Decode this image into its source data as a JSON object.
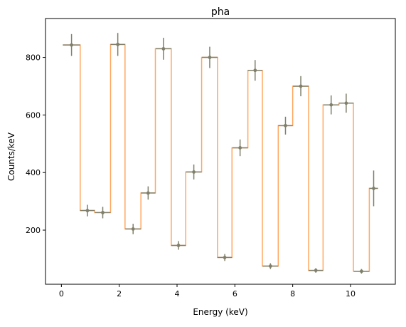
{
  "chart_data": {
    "type": "line",
    "title": "pha",
    "xlabel": "Energy (keV)",
    "ylabel": "Counts/keV",
    "xlim": [
      -0.55,
      11.55
    ],
    "ylim": [
      12,
      935
    ],
    "x_ticks": [
      0,
      2,
      4,
      6,
      8,
      10
    ],
    "x_tick_labels": [
      "0",
      "2",
      "4",
      "6",
      "8",
      "10"
    ],
    "y_ticks": [
      200,
      400,
      600,
      800
    ],
    "y_tick_labels": [
      "200",
      "400",
      "600",
      "800"
    ],
    "grid": false,
    "legend": "none",
    "colors": {
      "step": "#ffa75f",
      "points": "#7f7f6b",
      "frame": "#000000"
    },
    "series": [
      {
        "style": "step",
        "bins": [
          {
            "lo": 0.05,
            "hi": 0.65,
            "y": 843
          },
          {
            "lo": 0.65,
            "hi": 1.15,
            "y": 268
          },
          {
            "lo": 1.15,
            "hi": 1.7,
            "y": 261
          },
          {
            "lo": 1.7,
            "hi": 2.2,
            "y": 845
          },
          {
            "lo": 2.2,
            "hi": 2.75,
            "y": 204
          },
          {
            "lo": 2.75,
            "hi": 3.25,
            "y": 329
          },
          {
            "lo": 3.25,
            "hi": 3.8,
            "y": 830
          },
          {
            "lo": 3.8,
            "hi": 4.3,
            "y": 147
          },
          {
            "lo": 4.3,
            "hi": 4.85,
            "y": 402
          },
          {
            "lo": 4.85,
            "hi": 5.4,
            "y": 800
          },
          {
            "lo": 5.4,
            "hi": 5.9,
            "y": 105
          },
          {
            "lo": 5.9,
            "hi": 6.45,
            "y": 486
          },
          {
            "lo": 6.45,
            "hi": 6.95,
            "y": 755
          },
          {
            "lo": 6.95,
            "hi": 7.5,
            "y": 75
          },
          {
            "lo": 7.5,
            "hi": 8.0,
            "y": 563
          },
          {
            "lo": 8.0,
            "hi": 8.55,
            "y": 700
          },
          {
            "lo": 8.55,
            "hi": 9.05,
            "y": 60
          },
          {
            "lo": 9.05,
            "hi": 9.6,
            "y": 635
          },
          {
            "lo": 9.6,
            "hi": 10.1,
            "y": 641
          },
          {
            "lo": 10.1,
            "hi": 10.65,
            "y": 57
          },
          {
            "lo": 10.65,
            "hi": 10.95,
            "y": 345
          }
        ]
      },
      {
        "style": "errorbar",
        "points": [
          {
            "x": 0.35,
            "y": 843,
            "xerr": 0.3,
            "yerr": 38
          },
          {
            "x": 0.9,
            "y": 268,
            "xerr": 0.25,
            "yerr": 20
          },
          {
            "x": 1.43,
            "y": 261,
            "xerr": 0.27,
            "yerr": 20
          },
          {
            "x": 1.95,
            "y": 845,
            "xerr": 0.25,
            "yerr": 40
          },
          {
            "x": 2.48,
            "y": 204,
            "xerr": 0.27,
            "yerr": 18
          },
          {
            "x": 3.0,
            "y": 329,
            "xerr": 0.25,
            "yerr": 23
          },
          {
            "x": 3.53,
            "y": 830,
            "xerr": 0.27,
            "yerr": 38
          },
          {
            "x": 4.05,
            "y": 147,
            "xerr": 0.25,
            "yerr": 15
          },
          {
            "x": 4.58,
            "y": 402,
            "xerr": 0.27,
            "yerr": 26
          },
          {
            "x": 5.13,
            "y": 800,
            "xerr": 0.27,
            "yerr": 37
          },
          {
            "x": 5.65,
            "y": 105,
            "xerr": 0.25,
            "yerr": 12
          },
          {
            "x": 6.18,
            "y": 486,
            "xerr": 0.27,
            "yerr": 29
          },
          {
            "x": 6.7,
            "y": 755,
            "xerr": 0.25,
            "yerr": 36
          },
          {
            "x": 7.23,
            "y": 75,
            "xerr": 0.27,
            "yerr": 10
          },
          {
            "x": 7.75,
            "y": 563,
            "xerr": 0.25,
            "yerr": 31
          },
          {
            "x": 8.28,
            "y": 700,
            "xerr": 0.27,
            "yerr": 35
          },
          {
            "x": 8.8,
            "y": 60,
            "xerr": 0.25,
            "yerr": 8
          },
          {
            "x": 9.33,
            "y": 635,
            "xerr": 0.27,
            "yerr": 33
          },
          {
            "x": 9.85,
            "y": 641,
            "xerr": 0.25,
            "yerr": 33
          },
          {
            "x": 10.38,
            "y": 57,
            "xerr": 0.27,
            "yerr": 8
          },
          {
            "x": 10.8,
            "y": 345,
            "xerr": 0.15,
            "yerr": 62
          }
        ]
      }
    ]
  }
}
